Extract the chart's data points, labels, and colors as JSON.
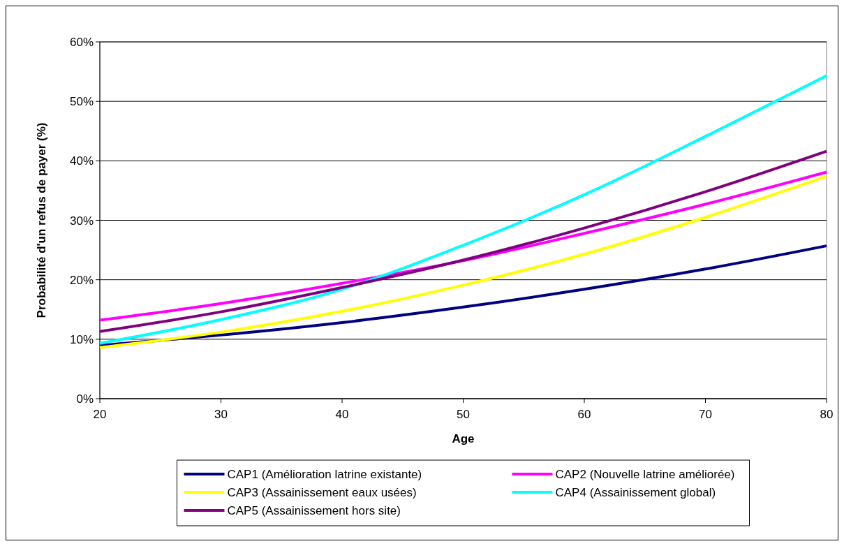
{
  "chart_data": {
    "type": "line",
    "xlabel": "Age",
    "ylabel": "Probabilité d'un refus de payer (%)",
    "x": [
      20,
      30,
      40,
      50,
      60,
      70,
      80
    ],
    "series": [
      {
        "name": "CAP1 (Amélioration latrine existante)",
        "color": "#000080",
        "values": [
          9.0,
          10.7,
          12.8,
          15.4,
          18.4,
          21.8,
          25.7
        ]
      },
      {
        "name": "CAP2 (Nouvelle latrine améliorée)",
        "color": "#ff00ff",
        "values": [
          13.2,
          16.0,
          19.4,
          23.2,
          27.8,
          32.7,
          38.1
        ]
      },
      {
        "name": "CAP3 (Assainissement eaux usées)",
        "color": "#ffff00",
        "values": [
          8.6,
          11.2,
          14.7,
          19.1,
          24.3,
          30.5,
          37.4
        ]
      },
      {
        "name": "CAP4 (Assainissement global)",
        "color": "#00ffff",
        "values": [
          9.3,
          13.3,
          18.4,
          25.8,
          34.3,
          44.1,
          54.3
        ]
      },
      {
        "name": "CAP5 (Assainissement hors site)",
        "color": "#800080",
        "values": [
          11.3,
          14.6,
          18.7,
          23.3,
          28.7,
          34.8,
          41.6
        ]
      }
    ],
    "xlim": [
      20,
      80
    ],
    "xticks": [
      20,
      30,
      40,
      50,
      60,
      70,
      80
    ],
    "ylim": [
      0,
      60
    ],
    "yticks": [
      {
        "value": 0,
        "label": "0%"
      },
      {
        "value": 10,
        "label": "10%"
      },
      {
        "value": 20,
        "label": "20%"
      },
      {
        "value": 30,
        "label": "30%"
      },
      {
        "value": 40,
        "label": "40%"
      },
      {
        "value": 50,
        "label": "50%"
      },
      {
        "value": 60,
        "label": "60%"
      }
    ],
    "grid": "y",
    "legend": "bottom",
    "marker": "none",
    "line_style": "solid"
  }
}
